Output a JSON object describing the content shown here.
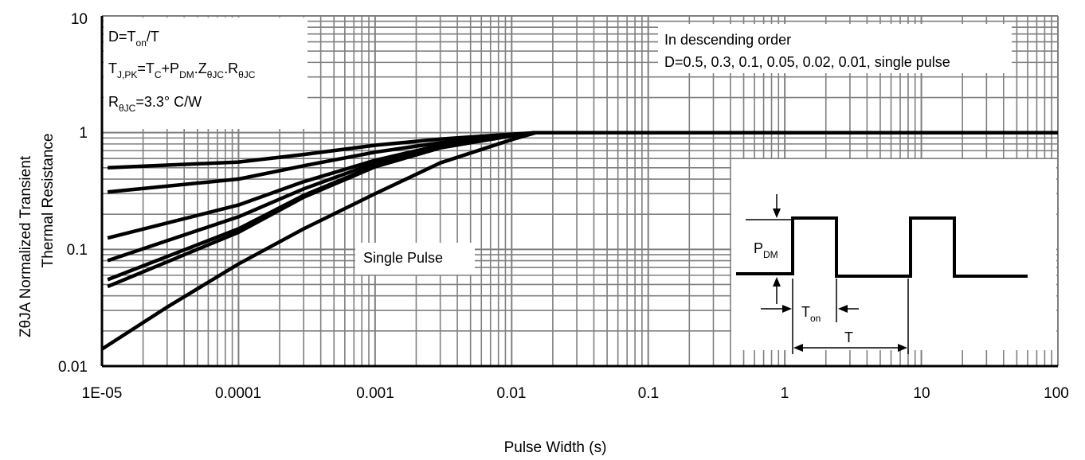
{
  "chart_data": {
    "type": "line",
    "xscale": "log",
    "yscale": "log",
    "xlim": [
      1e-05,
      100
    ],
    "ylim": [
      0.01,
      10
    ],
    "xlabel": "Pulse Width (s)",
    "ylabel_line1": "ZθJA Normalized Transient",
    "ylabel_line2": "Thermal Resistance",
    "x_ticks": [
      "1E-05",
      "0.0001",
      "0.001",
      "0.01",
      "0.1",
      "1",
      "10",
      "100"
    ],
    "y_ticks": [
      "0.01",
      "0.1",
      "1",
      "10"
    ],
    "grid": true,
    "series": [
      {
        "x": [
          1.1e-05,
          0.0001,
          0.0003,
          0.001,
          0.003,
          0.01,
          0.015,
          100
        ],
        "y": [
          0.5,
          0.56,
          0.65,
          0.78,
          0.88,
          0.97,
          1.0,
          1.0
        ]
      },
      {
        "x": [
          1.1e-05,
          0.0001,
          0.0003,
          0.001,
          0.003,
          0.01,
          0.015,
          100
        ],
        "y": [
          0.31,
          0.4,
          0.52,
          0.68,
          0.82,
          0.96,
          1.0,
          1.0
        ]
      },
      {
        "x": [
          1.1e-05,
          0.0001,
          0.0003,
          0.001,
          0.003,
          0.01,
          0.015,
          100
        ],
        "y": [
          0.125,
          0.24,
          0.38,
          0.58,
          0.78,
          0.95,
          1.0,
          1.0
        ]
      },
      {
        "x": [
          1.1e-05,
          0.0001,
          0.0003,
          0.001,
          0.003,
          0.01,
          0.015,
          100
        ],
        "y": [
          0.08,
          0.19,
          0.33,
          0.55,
          0.76,
          0.95,
          1.0,
          1.0
        ]
      },
      {
        "x": [
          1.1e-05,
          0.0001,
          0.0003,
          0.001,
          0.003,
          0.01,
          0.015,
          100
        ],
        "y": [
          0.055,
          0.15,
          0.29,
          0.52,
          0.75,
          0.94,
          1.0,
          1.0
        ]
      },
      {
        "x": [
          1.1e-05,
          0.0001,
          0.0003,
          0.001,
          0.003,
          0.01,
          0.015,
          100
        ],
        "y": [
          0.048,
          0.14,
          0.28,
          0.51,
          0.74,
          0.94,
          1.0,
          1.0
        ]
      },
      {
        "name": "Single Pulse",
        "x": [
          1e-05,
          3e-05,
          0.0001,
          0.0003,
          0.001,
          0.003,
          0.01,
          0.015,
          100
        ],
        "y": [
          0.014,
          0.032,
          0.075,
          0.15,
          0.3,
          0.55,
          0.87,
          1.0,
          1.0
        ]
      }
    ],
    "annotations": {
      "formula": {
        "line1": {
          "main": "D=T",
          "sub1": "on",
          "tail": "/T"
        },
        "line2": {
          "a": "T",
          "a_sub": "J,PK",
          "b": "=T",
          "b_sub": "C",
          "c": "+P",
          "c_sub": "DM",
          "d": ".Z",
          "d_sub": "θJC",
          "e": ".R",
          "e_sub": "θJC"
        },
        "line3": {
          "a": "R",
          "a_sub": "θJC",
          "b": "=3.3°  C/W"
        }
      },
      "order_line1": "In descending order",
      "order_line2": "D=0.5, 0.3, 0.1, 0.05, 0.02, 0.01, single pulse",
      "single_pulse_label": "Single Pulse",
      "inset": {
        "pdm": "P",
        "pdm_sub": "DM",
        "ton": "T",
        "ton_sub": "on",
        "period": "T"
      }
    }
  }
}
